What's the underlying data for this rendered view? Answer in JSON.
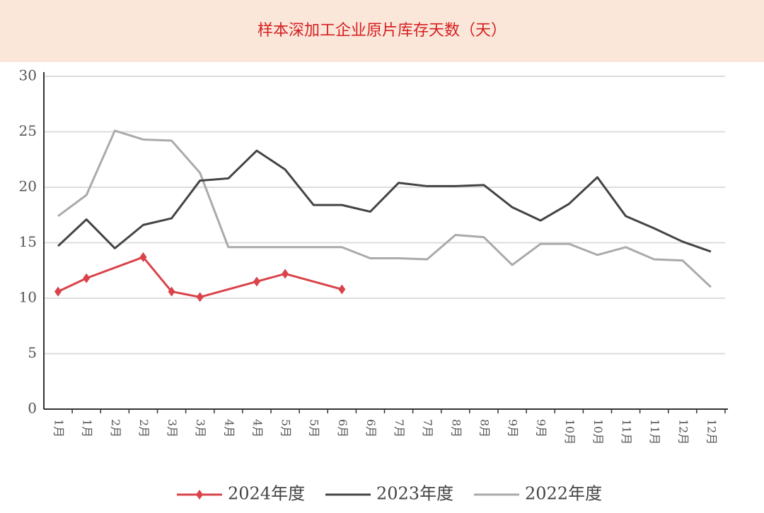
{
  "chart_data": {
    "type": "line",
    "title": "样本深加工企业原片库存天数（天）",
    "categories": [
      "1月",
      "1月",
      "2月",
      "2月",
      "3月",
      "3月",
      "4月",
      "4月",
      "5月",
      "5月",
      "6月",
      "6月",
      "7月",
      "7月",
      "8月",
      "8月",
      "9月",
      "9月",
      "10月",
      "10月",
      "11月",
      "11月",
      "12月",
      "12月"
    ],
    "series": [
      {
        "name": "2024年度",
        "color": "#d9434a",
        "marker": true,
        "connect_gaps": true,
        "values": [
          10.6,
          11.8,
          null,
          13.7,
          10.6,
          10.1,
          null,
          11.5,
          12.2,
          null,
          10.8,
          null,
          null,
          null,
          null,
          null,
          null,
          null,
          null,
          null,
          null,
          null,
          null,
          null
        ]
      },
      {
        "name": "2023年度",
        "color": "#444444",
        "values": [
          14.7,
          17.1,
          14.5,
          16.6,
          17.2,
          20.6,
          20.8,
          23.3,
          21.6,
          18.4,
          18.4,
          17.8,
          20.4,
          20.1,
          20.1,
          20.2,
          18.2,
          17.0,
          18.5,
          20.9,
          17.4,
          16.3,
          15.1,
          14.2
        ]
      },
      {
        "name": "2022年度",
        "color": "#aaaaaa",
        "values": [
          17.4,
          19.3,
          25.1,
          24.3,
          24.2,
          21.3,
          14.6,
          14.6,
          14.6,
          14.6,
          14.6,
          13.6,
          13.6,
          13.5,
          15.7,
          15.5,
          13.0,
          14.9,
          14.9,
          13.9,
          14.6,
          13.5,
          13.4,
          11.0
        ]
      }
    ],
    "ylim": [
      0,
      30
    ],
    "yticks": [
      0,
      5,
      10,
      15,
      20,
      25,
      30
    ],
    "grid": true
  }
}
